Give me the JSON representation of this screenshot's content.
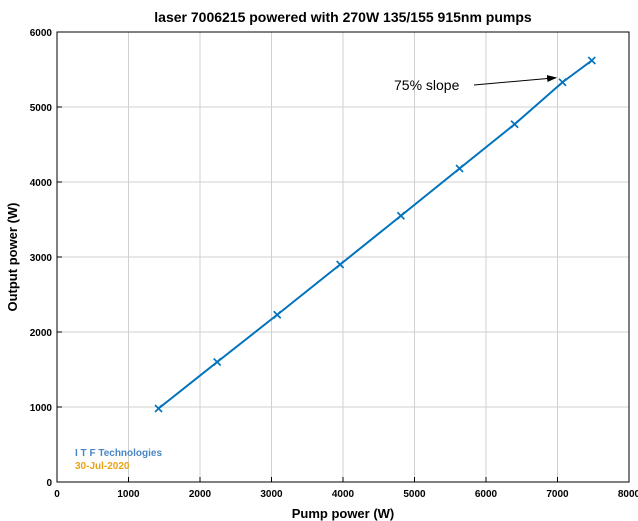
{
  "chart_data": {
    "type": "line",
    "title": "laser 7006215 powered with 270W 135/155 915nm pumps",
    "xlabel": "Pump power (W)",
    "ylabel": "Output power (W)",
    "xlim": [
      0,
      8000
    ],
    "ylim": [
      0,
      6000
    ],
    "xticks": [
      0,
      1000,
      2000,
      3000,
      4000,
      5000,
      6000,
      7000,
      8000
    ],
    "yticks": [
      0,
      1000,
      2000,
      3000,
      4000,
      5000,
      6000
    ],
    "grid": true,
    "series": [
      {
        "color": "#0072BD",
        "marker": "x",
        "points": [
          {
            "x": 1420,
            "y": 980
          },
          {
            "x": 2240,
            "y": 1600
          },
          {
            "x": 3080,
            "y": 2230
          },
          {
            "x": 3960,
            "y": 2900
          },
          {
            "x": 4810,
            "y": 3550
          },
          {
            "x": 5630,
            "y": 4180
          },
          {
            "x": 6400,
            "y": 4770
          },
          {
            "x": 7070,
            "y": 5330
          },
          {
            "x": 7480,
            "y": 5620
          }
        ]
      }
    ],
    "annotations": [
      {
        "text": "75% slope",
        "arrow_to": {
          "x": 6980,
          "y": 5390
        }
      }
    ]
  },
  "watermark": {
    "company": "I T F  Technologies",
    "date": "30-Jul-2020",
    "company_color": "#4a86c5",
    "date_color": "#e8a317"
  }
}
